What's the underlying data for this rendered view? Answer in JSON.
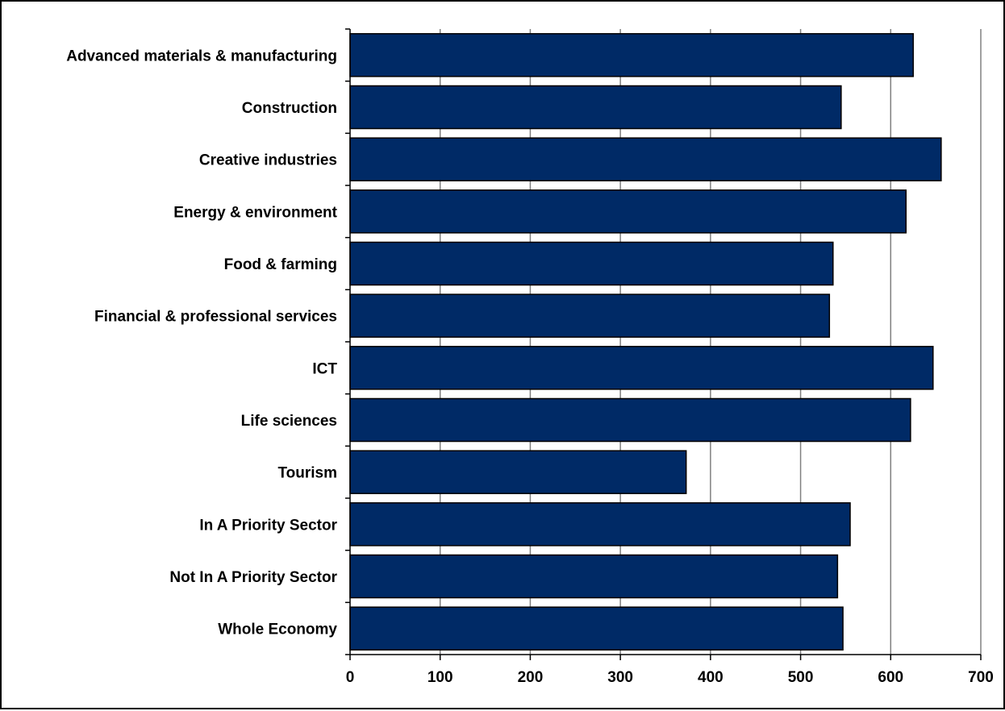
{
  "chart_data": {
    "type": "bar",
    "orientation": "horizontal",
    "title": "",
    "xlabel": "",
    "ylabel": "",
    "categories": [
      "Advanced materials & manufacturing",
      "Construction",
      "Creative industries",
      "Energy & environment",
      "Food & farming",
      "Financial & professional services",
      "ICT",
      "Life sciences",
      "Tourism",
      "In A Priority Sector",
      "Not In A Priority Sector",
      "Whole Economy"
    ],
    "values": [
      625,
      545,
      656,
      617,
      536,
      532,
      647,
      622,
      373,
      555,
      541,
      547
    ],
    "xlim": [
      0,
      700
    ],
    "xticks": [
      0,
      100,
      200,
      300,
      400,
      500,
      600,
      700
    ],
    "grid": "vertical",
    "legend": "none",
    "colors": {
      "bar": "#002A66",
      "grid": "#808080",
      "axis": "#000000"
    }
  }
}
